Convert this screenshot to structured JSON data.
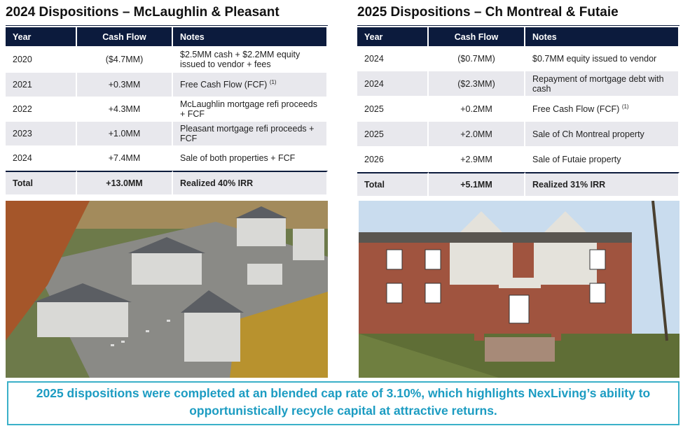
{
  "left": {
    "title": "2024 Dispositions – McLaughlin & Pleasant",
    "table": {
      "header": [
        "Year",
        "Cash Flow",
        "Notes"
      ],
      "rows": [
        {
          "year": "2020",
          "cash_flow": "($4.7MM)",
          "notes": "$2.5MM cash + $2.2MM equity issued to vendor + fees"
        },
        {
          "year": "2021",
          "cash_flow": "+0.3MM",
          "notes": "Free Cash Flow (FCF)",
          "note_ref": "(1)"
        },
        {
          "year": "2022",
          "cash_flow": "+4.3MM",
          "notes": "McLaughlin mortgage refi proceeds + FCF"
        },
        {
          "year": "2023",
          "cash_flow": "+1.0MM",
          "notes": "Pleasant mortgage refi proceeds + FCF"
        },
        {
          "year": "2024",
          "cash_flow": "+7.4MM",
          "notes": "Sale of both properties + FCF"
        }
      ],
      "total": {
        "year": "Total",
        "cash_flow": "+13.0MM",
        "notes": "Realized 40% IRR"
      }
    }
  },
  "right": {
    "title": "2025 Dispositions – Ch Montreal & Futaie",
    "table": {
      "header": [
        "Year",
        "Cash Flow",
        "Notes"
      ],
      "rows": [
        {
          "year": "2024",
          "cash_flow": "($0.7MM)",
          "notes": "$0.7MM equity issued to vendor"
        },
        {
          "year": "2024",
          "cash_flow": "($2.3MM)",
          "notes": "Repayment of mortgage debt with cash"
        },
        {
          "year": "2025",
          "cash_flow": "+0.2MM",
          "notes": "Free Cash Flow (FCF)",
          "note_ref": "(1)"
        },
        {
          "year": "2025",
          "cash_flow": "+2.0MM",
          "notes": "Sale of Ch Montreal property"
        },
        {
          "year": "2026",
          "cash_flow": "+2.9MM",
          "notes": "Sale of Futaie property"
        }
      ],
      "total": {
        "year": "Total",
        "cash_flow": "+5.1MM",
        "notes": "Realized 31% IRR"
      }
    }
  },
  "footer": {
    "text": "2025 dispositions were completed at an blended cap rate of 3.10%, which highlights NexLiving’s ability to opportunistically recycle capital at attractive returns."
  }
}
